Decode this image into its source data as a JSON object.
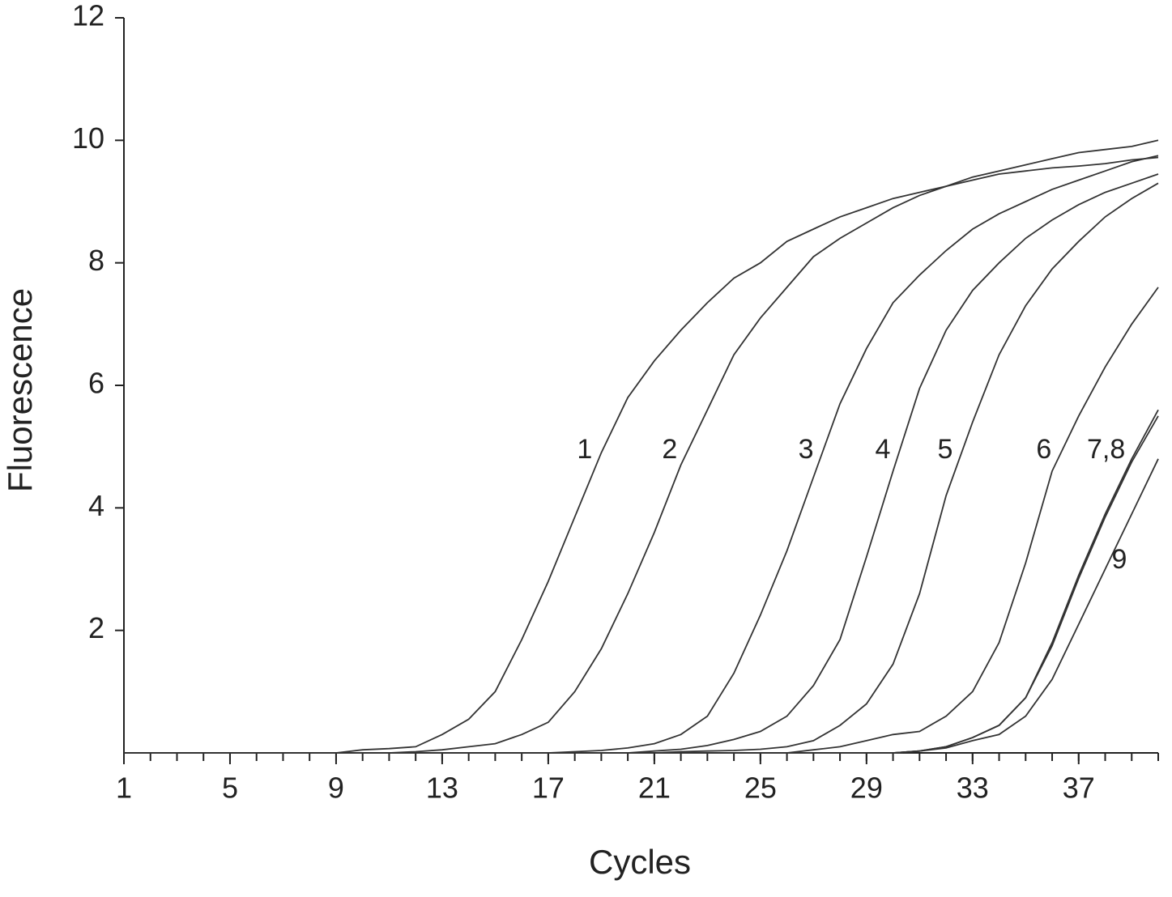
{
  "chart_data": {
    "type": "line",
    "x_label": "Cycles",
    "y_label": "Fluorescence",
    "x": [
      1,
      2,
      3,
      4,
      5,
      6,
      7,
      8,
      9,
      10,
      11,
      12,
      13,
      14,
      15,
      16,
      17,
      18,
      19,
      20,
      21,
      22,
      23,
      24,
      25,
      26,
      27,
      28,
      29,
      30,
      31,
      32,
      33,
      34,
      35,
      36,
      37,
      38,
      39,
      40
    ],
    "series": [
      {
        "name": "1",
        "color": "#333333",
        "values": [
          0,
          0,
          0,
          0,
          0,
          0,
          0,
          0,
          0,
          0.05,
          0.07,
          0.1,
          0.3,
          0.55,
          1.0,
          1.85,
          2.8,
          3.85,
          4.9,
          5.8,
          6.4,
          6.9,
          7.35,
          7.75,
          8.0,
          8.35,
          8.55,
          8.75,
          8.9,
          9.05,
          9.15,
          9.25,
          9.35,
          9.45,
          9.5,
          9.55,
          9.58,
          9.62,
          9.68,
          9.72
        ]
      },
      {
        "name": "2",
        "color": "#333333",
        "values": [
          0,
          0,
          0,
          0,
          0,
          0,
          0,
          0,
          0,
          0,
          0,
          0.02,
          0.05,
          0.1,
          0.15,
          0.3,
          0.5,
          1.0,
          1.7,
          2.6,
          3.6,
          4.7,
          5.6,
          6.5,
          7.1,
          7.6,
          8.1,
          8.4,
          8.65,
          8.9,
          9.1,
          9.25,
          9.4,
          9.5,
          9.6,
          9.7,
          9.8,
          9.85,
          9.9,
          10.0
        ]
      },
      {
        "name": "3",
        "color": "#333333",
        "values": [
          0,
          0,
          0,
          0,
          0,
          0,
          0,
          0,
          0,
          0,
          0,
          0,
          0,
          0,
          0,
          0,
          0,
          0.02,
          0.04,
          0.08,
          0.15,
          0.3,
          0.6,
          1.3,
          2.25,
          3.3,
          4.5,
          5.7,
          6.6,
          7.35,
          7.8,
          8.2,
          8.55,
          8.8,
          9.0,
          9.2,
          9.35,
          9.5,
          9.65,
          9.75
        ]
      },
      {
        "name": "4",
        "color": "#333333",
        "values": [
          0,
          0,
          0,
          0,
          0,
          0,
          0,
          0,
          0,
          0,
          0,
          0,
          0,
          0,
          0,
          0,
          0,
          0,
          0,
          0,
          0.03,
          0.06,
          0.12,
          0.22,
          0.35,
          0.6,
          1.1,
          1.85,
          3.2,
          4.6,
          5.95,
          6.9,
          7.55,
          8.0,
          8.4,
          8.7,
          8.95,
          9.15,
          9.3,
          9.45
        ]
      },
      {
        "name": "5",
        "color": "#333333",
        "values": [
          0,
          0,
          0,
          0,
          0,
          0,
          0,
          0,
          0,
          0,
          0,
          0,
          0,
          0,
          0,
          0,
          0,
          0,
          0,
          0,
          0,
          0.02,
          0.03,
          0.04,
          0.06,
          0.1,
          0.2,
          0.45,
          0.8,
          1.45,
          2.6,
          4.2,
          5.4,
          6.5,
          7.3,
          7.9,
          8.35,
          8.75,
          9.05,
          9.3
        ]
      },
      {
        "name": "6",
        "color": "#333333",
        "values": [
          0,
          0,
          0,
          0,
          0,
          0,
          0,
          0,
          0,
          0,
          0,
          0,
          0,
          0,
          0,
          0,
          0,
          0,
          0,
          0,
          0,
          0,
          0,
          0,
          0,
          0,
          0.05,
          0.1,
          0.2,
          0.3,
          0.35,
          0.6,
          1.0,
          1.8,
          3.1,
          4.6,
          5.5,
          6.3,
          7.0,
          7.6
        ]
      },
      {
        "name": "7,8",
        "color": "#333333",
        "values": [
          0,
          0,
          0,
          0,
          0,
          0,
          0,
          0,
          0,
          0,
          0,
          0,
          0,
          0,
          0,
          0,
          0,
          0,
          0,
          0,
          0,
          0,
          0,
          0,
          0,
          0,
          0,
          0,
          0,
          0,
          0.03,
          0.1,
          0.25,
          0.45,
          0.9,
          1.8,
          2.9,
          3.9,
          4.8,
          5.6
        ]
      },
      {
        "color": "#333333",
        "values": [
          0,
          0,
          0,
          0,
          0,
          0,
          0,
          0,
          0,
          0,
          0,
          0,
          0,
          0,
          0,
          0,
          0,
          0,
          0,
          0,
          0,
          0,
          0,
          0,
          0,
          0,
          0,
          0,
          0,
          0,
          0.03,
          0.1,
          0.25,
          0.45,
          0.9,
          1.75,
          2.85,
          3.85,
          4.75,
          5.5
        ]
      },
      {
        "name": "9",
        "color": "#333333",
        "values": [
          0,
          0,
          0,
          0,
          0,
          0,
          0,
          0,
          0,
          0,
          0,
          0,
          0,
          0,
          0,
          0,
          0,
          0,
          0,
          0,
          0,
          0,
          0,
          0,
          0,
          0,
          0,
          0,
          0,
          0,
          0.03,
          0.08,
          0.2,
          0.3,
          0.6,
          1.2,
          2.1,
          3.0,
          3.9,
          4.8
        ]
      }
    ],
    "xlim": [
      1,
      40
    ],
    "ylim": [
      0,
      12
    ],
    "xticks": [
      1,
      5,
      9,
      13,
      17,
      21,
      25,
      29,
      33,
      37
    ],
    "xminorticks": [
      1,
      2,
      3,
      4,
      5,
      6,
      7,
      8,
      9,
      10,
      11,
      12,
      13,
      14,
      15,
      16,
      17,
      18,
      19,
      20,
      21,
      22,
      23,
      24,
      25,
      26,
      27,
      28,
      29,
      30,
      31,
      32,
      33,
      34,
      35,
      36,
      37,
      38,
      39,
      40
    ],
    "yticks": [
      2,
      4,
      6,
      8,
      10,
      12
    ],
    "grid": false
  }
}
